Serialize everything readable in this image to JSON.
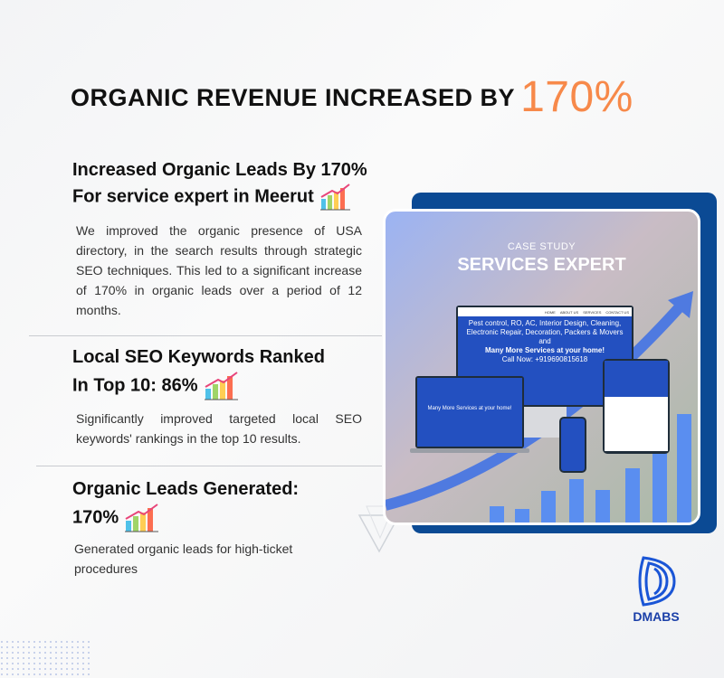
{
  "headline": {
    "text": "ORGANIC REVENUE INCREASED BY",
    "highlight": "170%",
    "highlight_color": "#f7894a"
  },
  "sections": [
    {
      "title_line1": "Increased Organic Leads By 170%",
      "title_line2": "For service expert in Meerut",
      "icon": "growth-chart-icon",
      "body": "We improved the organic presence of USA directory, in the search results through strategic SEO techniques. This led to a significant increase of 170% in organic leads over a period of 12 months."
    },
    {
      "title_line1": "Local SEO Keywords Ranked",
      "title_line2": "In Top 10: 86%",
      "icon": "growth-chart-icon",
      "body": "Significantly improved targeted local SEO keywords' rankings in the top 10 results."
    },
    {
      "title_line1": "Organic Leads Generated:",
      "title_line2": "170%",
      "icon": "growth-chart-icon",
      "body": "Generated organic leads for high-ticket procedures"
    }
  ],
  "case_study": {
    "label": "CASE STUDY",
    "title": "SERVICES EXPERT",
    "nav": [
      "HOME",
      "ABOUT US",
      "SERVICES",
      "CONTACT US"
    ],
    "hero_line1": "Pest control, RO, AC, Interior Design, Cleaning, Electronic Repair, Decoration, Packers & Movers and",
    "hero_line2": "Many More Services at your home!",
    "hero_line3": "Call Now: +919690815618"
  },
  "logo": {
    "text": "DMABS",
    "color": "#1a4fc4"
  }
}
